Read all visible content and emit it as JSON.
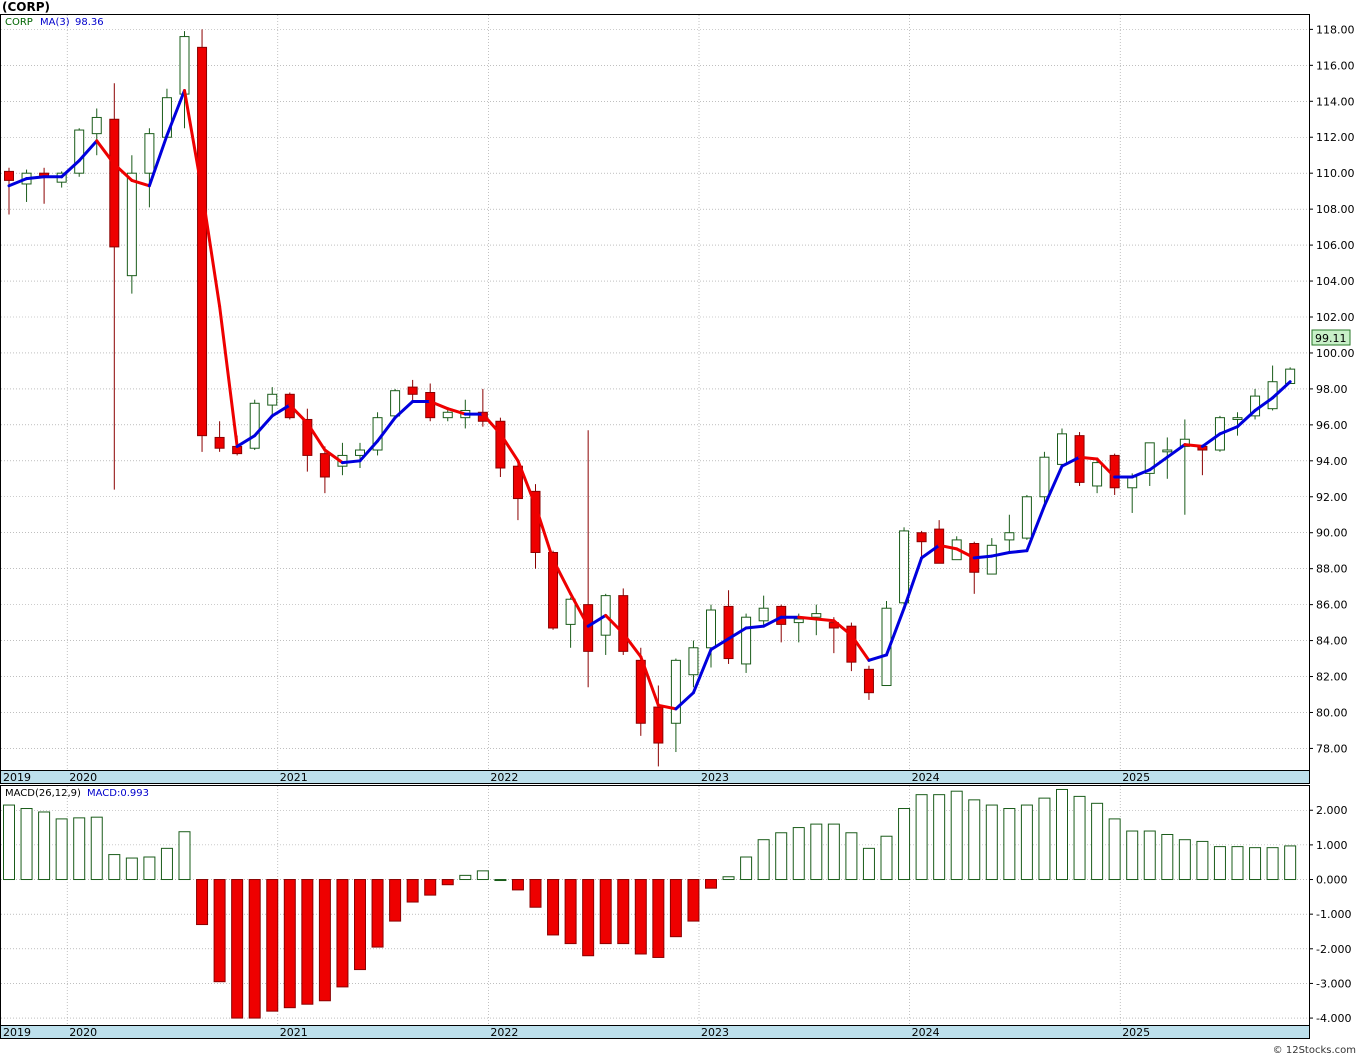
{
  "title": "(CORP)",
  "footer": "© 12Stocks.com",
  "colors": {
    "up_fill": "#ffffff",
    "up_edge": "#1a5c1a",
    "down_fill": "#ee0000",
    "down_edge": "#8b0000",
    "ma_up": "#0000dd",
    "ma_down": "#ee0000",
    "axis_band": "#bde0ec",
    "grid": "#999999"
  },
  "chart_data": [
    {
      "type": "candlestick",
      "symbol_label": "CORP",
      "ma_label": "MA(3)",
      "ma_value": "98.36",
      "last_price_label": "99.11",
      "ylim": [
        76.8,
        118.8
      ],
      "yticks": [
        "78.00",
        "80.00",
        "82.00",
        "84.00",
        "86.00",
        "88.00",
        "90.00",
        "92.00",
        "94.00",
        "96.00",
        "98.00",
        "100.00",
        "102.00",
        "104.00",
        "106.00",
        "108.00",
        "110.00",
        "112.00",
        "114.00",
        "116.00",
        "118.00"
      ],
      "x_year_labels": [
        "2019",
        "2020",
        "2021",
        "2022",
        "2023",
        "2024",
        "2025"
      ],
      "year_label_month_index": [
        0,
        4,
        16,
        28,
        40,
        52,
        64
      ],
      "ohlc": [
        [
          110.1,
          110.3,
          107.7,
          109.6
        ],
        [
          109.4,
          110.2,
          108.4,
          110.0
        ],
        [
          110.0,
          110.3,
          108.3,
          109.8
        ],
        [
          109.5,
          110.1,
          109.2,
          110.0
        ],
        [
          110.0,
          112.5,
          109.8,
          112.4
        ],
        [
          112.2,
          113.6,
          111.0,
          113.1
        ],
        [
          113.0,
          115.0,
          92.4,
          105.9
        ],
        [
          104.3,
          111.0,
          103.3,
          110.0
        ],
        [
          110.0,
          112.5,
          108.1,
          112.2
        ],
        [
          112.0,
          114.7,
          112.0,
          114.2
        ],
        [
          114.4,
          117.9,
          112.5,
          117.6
        ],
        [
          117.0,
          118.0,
          94.5,
          95.4
        ],
        [
          95.3,
          96.2,
          94.5,
          94.7
        ],
        [
          94.8,
          95.4,
          94.3,
          94.4
        ],
        [
          94.7,
          97.4,
          94.6,
          97.2
        ],
        [
          97.1,
          98.1,
          96.5,
          97.7
        ],
        [
          97.7,
          97.8,
          96.3,
          96.4
        ],
        [
          96.3,
          96.9,
          93.4,
          94.3
        ],
        [
          94.4,
          94.8,
          92.2,
          93.1
        ],
        [
          93.7,
          95.0,
          93.2,
          94.3
        ],
        [
          94.3,
          95.0,
          93.6,
          94.6
        ],
        [
          94.6,
          96.7,
          94.3,
          96.4
        ],
        [
          96.5,
          98.0,
          96.5,
          97.9
        ],
        [
          98.1,
          98.5,
          97.2,
          97.7
        ],
        [
          97.8,
          98.3,
          96.2,
          96.4
        ],
        [
          96.4,
          96.9,
          96.2,
          96.7
        ],
        [
          96.4,
          97.4,
          95.8,
          96.8
        ],
        [
          96.7,
          98.0,
          95.9,
          96.2
        ],
        [
          96.2,
          96.4,
          93.1,
          93.6
        ],
        [
          93.7,
          94.1,
          90.7,
          91.9
        ],
        [
          92.3,
          92.7,
          88.0,
          88.9
        ],
        [
          88.9,
          89.0,
          84.6,
          84.7
        ],
        [
          84.9,
          86.4,
          83.6,
          86.3
        ],
        [
          86.0,
          95.7,
          81.4,
          83.4
        ],
        [
          84.3,
          86.6,
          83.2,
          86.5
        ],
        [
          86.5,
          86.9,
          83.2,
          83.4
        ],
        [
          82.9,
          83.6,
          78.7,
          79.4
        ],
        [
          80.3,
          81.5,
          77.0,
          78.3
        ],
        [
          79.4,
          83.0,
          77.8,
          82.9
        ],
        [
          82.1,
          84.0,
          81.4,
          83.6
        ],
        [
          83.6,
          86.0,
          82.5,
          85.7
        ],
        [
          85.9,
          86.8,
          82.7,
          83.0
        ],
        [
          82.7,
          85.5,
          82.2,
          85.3
        ],
        [
          85.1,
          86.5,
          84.8,
          85.8
        ],
        [
          85.9,
          86.0,
          83.9,
          84.9
        ],
        [
          85.0,
          85.5,
          83.9,
          85.2
        ],
        [
          85.3,
          86.0,
          84.3,
          85.5
        ],
        [
          85.0,
          85.3,
          83.3,
          84.7
        ],
        [
          84.8,
          85.0,
          82.3,
          82.8
        ],
        [
          82.4,
          82.6,
          80.7,
          81.1
        ],
        [
          81.5,
          86.2,
          81.5,
          85.8
        ],
        [
          86.1,
          90.3,
          86.0,
          90.1
        ],
        [
          90.0,
          90.1,
          88.6,
          89.5
        ],
        [
          90.2,
          90.7,
          88.3,
          88.3
        ],
        [
          88.5,
          89.8,
          88.5,
          89.6
        ],
        [
          89.4,
          89.5,
          86.6,
          87.8
        ],
        [
          87.7,
          89.7,
          87.7,
          89.3
        ],
        [
          89.6,
          91.0,
          88.9,
          90.0
        ],
        [
          89.7,
          92.1,
          89.6,
          92.0
        ],
        [
          92.0,
          94.5,
          91.4,
          94.2
        ],
        [
          93.8,
          95.8,
          93.8,
          95.5
        ],
        [
          95.4,
          95.6,
          92.6,
          92.8
        ],
        [
          92.6,
          94.1,
          92.2,
          93.9
        ],
        [
          94.3,
          94.4,
          92.1,
          92.5
        ],
        [
          92.5,
          93.3,
          91.1,
          93.1
        ],
        [
          93.3,
          95.0,
          92.6,
          95.0
        ],
        [
          94.5,
          95.3,
          93.0,
          94.6
        ],
        [
          94.8,
          96.3,
          91.0,
          95.2
        ],
        [
          94.8,
          94.9,
          93.2,
          94.6
        ],
        [
          94.6,
          96.5,
          94.5,
          96.4
        ],
        [
          96.3,
          96.7,
          95.4,
          96.4
        ],
        [
          96.5,
          98.0,
          96.3,
          97.6
        ],
        [
          96.9,
          99.3,
          96.8,
          98.4
        ],
        [
          98.3,
          99.2,
          98.3,
          99.1
        ]
      ],
      "ma3": [
        109.3,
        109.7,
        109.8,
        109.8,
        110.7,
        111.8,
        110.5,
        109.6,
        109.3,
        112.1,
        114.6,
        109.0,
        102.6,
        94.8,
        95.4,
        96.5,
        97.1,
        96.1,
        94.6,
        93.9,
        94.0,
        95.1,
        96.4,
        97.3,
        97.3,
        96.9,
        96.6,
        96.6,
        95.5,
        94.0,
        91.5,
        88.5,
        86.6,
        84.8,
        85.4,
        84.4,
        83.1,
        80.4,
        80.2,
        81.1,
        83.5,
        84.1,
        84.7,
        84.8,
        85.3,
        85.3,
        85.2,
        85.1,
        84.3,
        82.9,
        83.2,
        85.8,
        88.6,
        89.3,
        89.1,
        88.6,
        88.7,
        88.9,
        89.0,
        91.5,
        93.7,
        94.2,
        94.1,
        93.1,
        93.1,
        93.5,
        94.2,
        94.9,
        94.8,
        95.5,
        95.9,
        96.8,
        97.5,
        98.4
      ],
      "ma_panel": "ylim [76.8, 118.8]"
    },
    {
      "type": "bar",
      "indicator_label": "MACD(26,12,9)",
      "value_label": "MACD:0.993",
      "ylim": [
        -4.2,
        2.7
      ],
      "yticks": [
        "-4.000",
        "-3.000",
        "-2.000",
        "-1.000",
        "0.000",
        "1.000",
        "2.000"
      ],
      "x_year_labels": [
        "2019",
        "2020",
        "2021",
        "2022",
        "2023",
        "2024",
        "2025"
      ],
      "values": [
        2.15,
        2.05,
        1.95,
        1.75,
        1.78,
        1.8,
        0.72,
        0.62,
        0.65,
        0.9,
        1.38,
        -1.3,
        -2.95,
        -4.0,
        -4.0,
        -3.8,
        -3.7,
        -3.6,
        -3.5,
        -3.1,
        -2.6,
        -1.95,
        -1.2,
        -0.65,
        -0.45,
        -0.15,
        0.12,
        0.25,
        0.0,
        -0.3,
        -0.8,
        -1.6,
        -1.85,
        -2.2,
        -1.85,
        -1.85,
        -2.15,
        -2.25,
        -1.65,
        -1.2,
        -0.25,
        0.08,
        0.65,
        1.15,
        1.35,
        1.5,
        1.6,
        1.6,
        1.35,
        0.9,
        1.25,
        2.05,
        2.45,
        2.45,
        2.55,
        2.3,
        2.15,
        2.05,
        2.15,
        2.35,
        2.6,
        2.4,
        2.2,
        1.75,
        1.4,
        1.4,
        1.3,
        1.15,
        1.1,
        0.95,
        0.95,
        0.92,
        0.92,
        0.97
      ]
    }
  ]
}
